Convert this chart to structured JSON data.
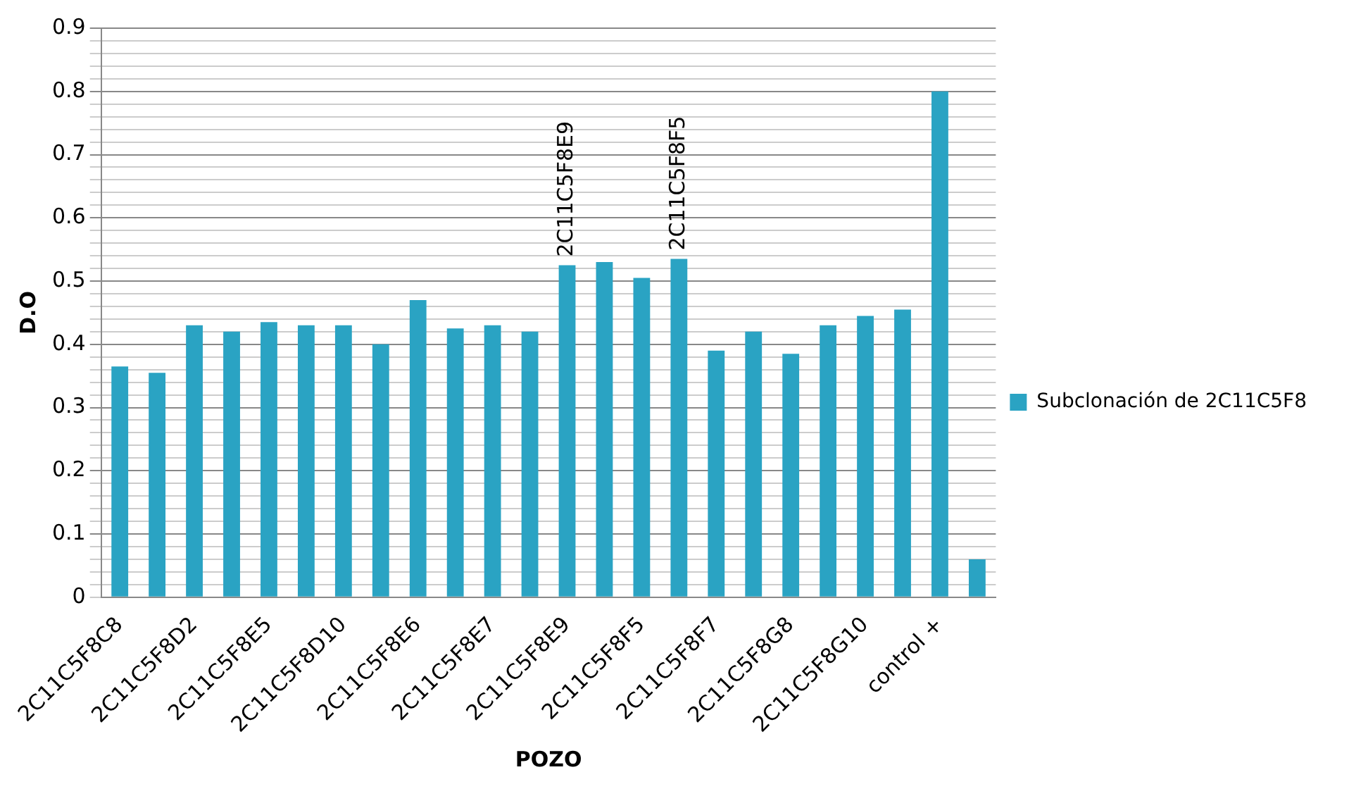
{
  "chart_data": {
    "type": "bar",
    "xlabel": "POZO",
    "ylabel": "D.O",
    "categories": [
      "2C11C5F8C8",
      null,
      "2C11C5F8D2",
      null,
      "2C11C5F8E5",
      null,
      "2C11C5F8D10",
      null,
      "2C11C5F8E6",
      null,
      "2C11C5F8E7",
      null,
      "2C11C5F8E9",
      null,
      "2C11C5F8F5",
      null,
      "2C11C5F8F7",
      null,
      "2C11C5F8G8",
      null,
      "2C11C5F8G10",
      null,
      "control +",
      null
    ],
    "series": [
      {
        "name": "Subclonación de 2C11C5F8",
        "color": "#2aa3c3",
        "values": [
          0.365,
          0.355,
          0.43,
          0.42,
          0.435,
          0.43,
          0.43,
          0.4,
          0.47,
          0.425,
          0.43,
          0.42,
          0.525,
          0.53,
          0.505,
          0.535,
          0.39,
          0.42,
          0.385,
          0.43,
          0.445,
          0.455,
          0.8,
          0.06
        ]
      }
    ],
    "annotations": [
      {
        "text": "2C11C5F8E9",
        "y": 0.525
      },
      {
        "text": "2C11C5F8F5",
        "y": 0.535
      }
    ],
    "ylim": [
      0,
      0.9
    ],
    "yticks": [
      0,
      {
        "value": 0.02,
        "label": null
      },
      {
        "value": 0.04,
        "label": null
      },
      {
        "value": 0.06,
        "label": null
      },
      {
        "value": 0.08,
        "label": null
      },
      0.1,
      {
        "value": 0.12,
        "label": null
      },
      {
        "value": 0.14,
        "label": null
      },
      {
        "value": 0.16,
        "label": null
      },
      {
        "value": 0.18,
        "label": null
      },
      0.2,
      {
        "value": 0.22,
        "label": null
      },
      {
        "value": 0.24,
        "label": null
      },
      {
        "value": 0.26,
        "label": null
      },
      {
        "value": 0.28,
        "label": null
      },
      0.3,
      {
        "value": 0.32,
        "label": null
      },
      {
        "value": 0.34,
        "label": null
      },
      {
        "value": 0.36,
        "label": null
      },
      {
        "value": 0.38,
        "label": null
      },
      0.4,
      {
        "value": 0.42,
        "label": null
      },
      {
        "value": 0.44,
        "label": null
      },
      {
        "value": 0.46,
        "label": null
      },
      {
        "value": 0.48,
        "label": null
      },
      0.5,
      {
        "value": 0.52,
        "label": null
      },
      {
        "value": 0.54,
        "label": null
      },
      {
        "value": 0.56,
        "label": null
      },
      {
        "value": 0.58,
        "label": null
      },
      0.6,
      {
        "value": 0.62,
        "label": null
      },
      {
        "value": 0.64,
        "label": null
      },
      {
        "value": 0.66,
        "label": null
      },
      {
        "value": 0.68,
        "label": null
      },
      0.7,
      {
        "value": 0.72,
        "label": null
      },
      {
        "value": 0.74,
        "label": null
      },
      {
        "value": 0.76,
        "label": null
      },
      {
        "value": 0.78,
        "label": null
      },
      0.8,
      {
        "value": 0.82,
        "label": null
      },
      {
        "value": 0.84,
        "label": null
      },
      {
        "value": 0.86,
        "label": null
      },
      {
        "value": 0.88,
        "label": null
      },
      0.9
    ],
    "grid": "y",
    "legend": "right"
  }
}
